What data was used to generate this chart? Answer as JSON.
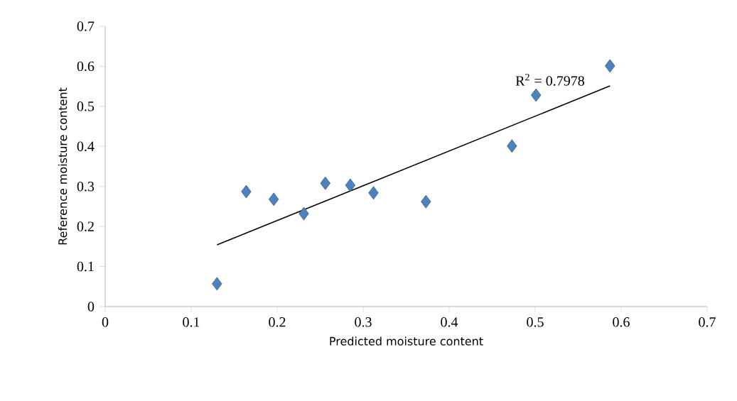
{
  "chart_data": {
    "type": "scatter",
    "xlabel": "Predicted moisture content",
    "ylabel": "Reference moisture content",
    "xlim": [
      0,
      0.7
    ],
    "ylim": [
      0,
      0.7
    ],
    "xticks": [
      0,
      0.1,
      0.2,
      0.3,
      0.4,
      0.5,
      0.6,
      0.7
    ],
    "yticks": [
      0,
      0.1,
      0.2,
      0.3,
      0.4,
      0.5,
      0.6,
      0.7
    ],
    "x": [
      0.13,
      0.164,
      0.196,
      0.231,
      0.256,
      0.285,
      0.312,
      0.373,
      0.473,
      0.501,
      0.587
    ],
    "series": [
      {
        "color": "#4f81bd",
        "values": [
          0.057,
          0.287,
          0.268,
          0.232,
          0.308,
          0.303,
          0.284,
          0.262,
          0.401,
          0.528,
          0.601
        ]
      },
      {
        "type": "line",
        "marker": "none",
        "color": "#000000",
        "x": [
          0.13,
          0.587
        ],
        "values": [
          0.154,
          0.551
        ]
      }
    ],
    "annotations": [
      "R$^{2}$ = 0.7978"
    ],
    "marker": "diamond",
    "grid": false
  }
}
